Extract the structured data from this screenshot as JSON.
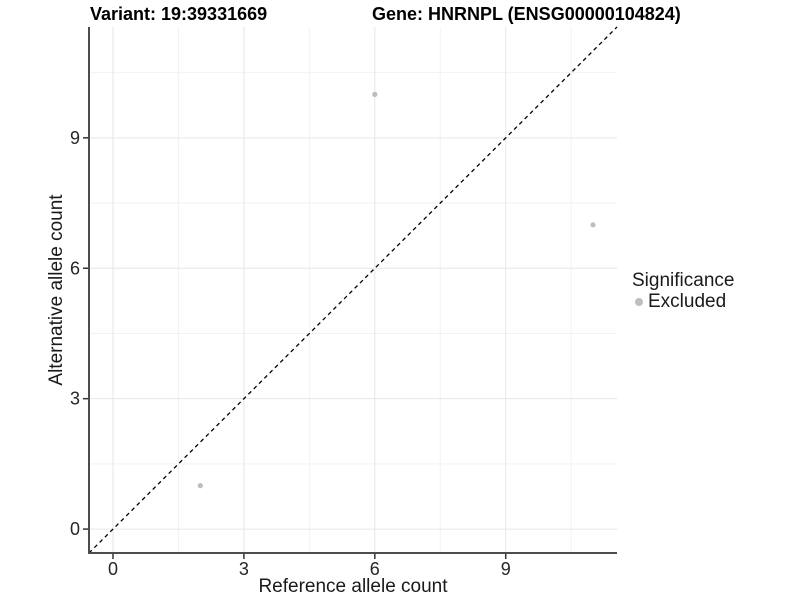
{
  "chart_data": {
    "type": "scatter",
    "title_left": "Variant: 19:39331669",
    "title_right": "Gene: HNRNPL (ENSG00000104824)",
    "xlabel": "Reference allele count",
    "ylabel": "Alternative allele count",
    "xlim": [
      -0.55,
      11.55
    ],
    "ylim": [
      -0.55,
      11.55
    ],
    "x_ticks": [
      0,
      3,
      6,
      9
    ],
    "y_ticks": [
      0,
      3,
      6,
      9
    ],
    "minor_ticks": [
      1.5,
      4.5,
      7.5,
      10.5
    ],
    "grid": true,
    "identity_line": {
      "style": "dashed",
      "color": "#000000",
      "from": -0.55,
      "to": 11.55
    },
    "series": [
      {
        "name": "Excluded",
        "color": "#BEBEBE",
        "points": [
          [
            2,
            1
          ],
          [
            6,
            10
          ],
          [
            11,
            7
          ]
        ]
      }
    ],
    "legend": {
      "title": "Significance",
      "position": "right",
      "items": [
        {
          "label": "Excluded",
          "color": "#BEBEBE"
        }
      ]
    },
    "colors": {
      "grid_major": "#E6E6E6",
      "grid_minor": "#F2F2F2",
      "spine": "#4D4D4D",
      "tick": "#333333",
      "tick_label": "#262626"
    }
  }
}
